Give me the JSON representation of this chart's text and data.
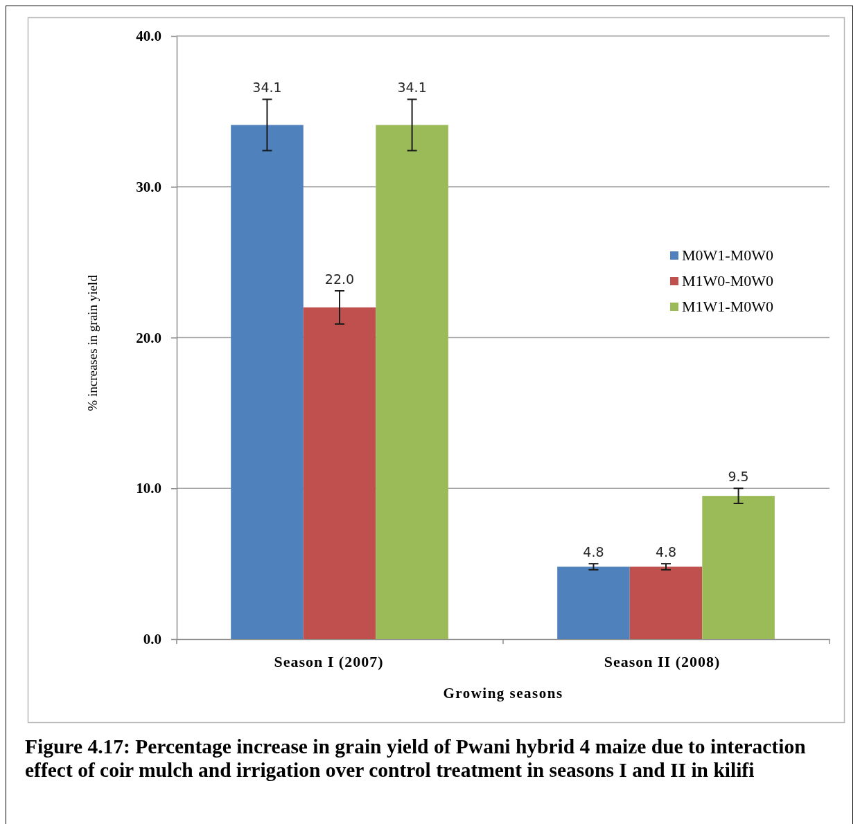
{
  "chart_data": {
    "type": "bar",
    "categories": [
      "Season I (2007)",
      "Season II (2008)"
    ],
    "xlabel": "Growing seasons",
    "ylabel": "% increases in grain yield",
    "ylim": [
      0,
      40
    ],
    "yticks": [
      {
        "value": 0,
        "label": "0.0"
      },
      {
        "value": 10,
        "label": "10.0"
      },
      {
        "value": 20,
        "label": "20.0"
      },
      {
        "value": 30,
        "label": "30.0"
      },
      {
        "value": 40,
        "label": "40.0"
      }
    ],
    "grid": "y",
    "legend": "right",
    "series": [
      {
        "name": "M0W1-M0W0",
        "color": "#4f81bd",
        "values": [
          34.1,
          4.8
        ],
        "errors": [
          1.7,
          0.2
        ],
        "value_labels": [
          "34.1",
          "4.8"
        ]
      },
      {
        "name": "M1W0-M0W0",
        "color": "#c0504d",
        "values": [
          22.0,
          4.8
        ],
        "errors": [
          1.1,
          0.2
        ],
        "value_labels": [
          "22.0",
          "4.8"
        ]
      },
      {
        "name": "M1W1-M0W0",
        "color": "#9bbb59",
        "values": [
          34.1,
          9.5
        ],
        "errors": [
          1.7,
          0.5
        ],
        "value_labels": [
          "34.1",
          "9.5"
        ]
      }
    ],
    "annotations": [
      "Figure 4.17: Percentage increase in grain yield of Pwani hybrid 4 maize due to interaction effect of coir mulch and irrigation over control treatment in seasons I and II in kilifi"
    ]
  }
}
